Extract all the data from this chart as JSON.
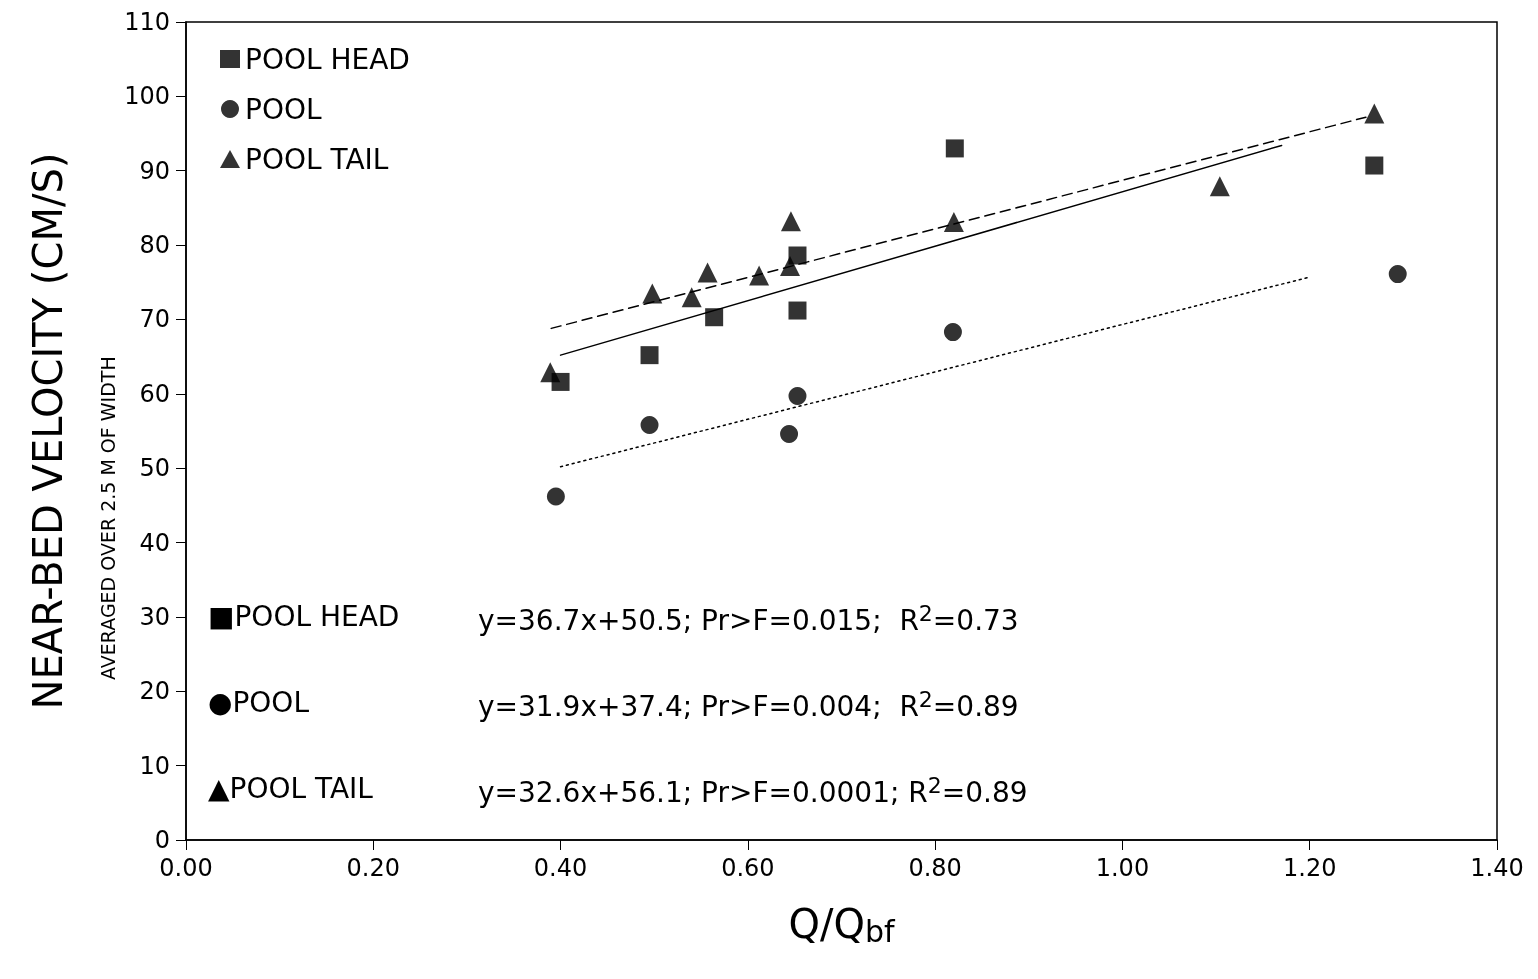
{
  "chart_data": {
    "type": "scatter",
    "xlabel": "Q/Q$_{bf}$",
    "ylabel": "NEAR-BED VELOCITY (CM/S)",
    "xlim": [
      0,
      1.4
    ],
    "xticks": [
      {
        "value": 0,
        "label": "0.00"
      },
      {
        "value": 0.2,
        "label": "0.20"
      },
      {
        "value": 0.4,
        "label": "0.40"
      },
      {
        "value": 0.6,
        "label": "0.60"
      },
      {
        "value": 0.8,
        "label": "0.80"
      },
      {
        "value": 1,
        "label": "1.00"
      },
      {
        "value": 1.2,
        "label": "1.20"
      },
      {
        "value": 1.4,
        "label": "1.40"
      }
    ],
    "ylim": [
      0,
      110
    ],
    "yticks": [
      0,
      10,
      20,
      30,
      40,
      50,
      60,
      70,
      80,
      90,
      100,
      110
    ],
    "grid": false,
    "legend": "top left",
    "series": [
      {
        "name": "POOL HEAD",
        "color": "#000000",
        "marker": "square",
        "x": [
          0.4,
          0.495,
          0.564,
          0.653,
          0.653,
          0.821,
          1.269
        ],
        "values": [
          61.6,
          65.2,
          70.3,
          71.2,
          78.6,
          93.0,
          90.7
        ]
      },
      {
        "name": "POOL",
        "color": "#000000",
        "marker": "circle",
        "x": [
          0.395,
          0.495,
          0.644,
          0.653,
          0.819,
          1.294
        ],
        "values": [
          46.2,
          55.8,
          54.6,
          59.7,
          68.3,
          76.1
        ]
      },
      {
        "name": "POOL TAIL",
        "color": "#000000",
        "marker": "triangle",
        "x": [
          0.389,
          0.498,
          0.54,
          0.557,
          0.612,
          0.645,
          0.646,
          0.82,
          1.104,
          1.269
        ],
        "values": [
          62.9,
          73.5,
          73.0,
          76.3,
          75.9,
          77.2,
          83.2,
          83.1,
          87.9,
          97.7
        ]
      },
      {
        "type": "line",
        "color": "#000000",
        "line_style": "solid",
        "marker": "none",
        "x": [
          0.4,
          1.17
        ],
        "values": [
          65.2,
          93.4
        ]
      },
      {
        "type": "line",
        "color": "#000000",
        "line_style": "dotted",
        "marker": "none",
        "x": [
          0.4,
          1.2
        ],
        "values": [
          50.2,
          75.7
        ]
      },
      {
        "type": "line",
        "color": "#000000",
        "line_style": "dashed",
        "marker": "none",
        "x": [
          0.39,
          1.26
        ],
        "values": [
          68.8,
          97.2
        ]
      }
    ],
    "annotations": [
      "AVERAGED OVER 2.5 M OF WIDTH",
      "■POOL HEAD",
      "y=36.7x+50.5; Pr>F=0.015;  R$^{2}$=0.73",
      "●POOL",
      "y=31.9x+37.4; Pr>F=0.004;  R$^{2}$=0.89",
      "▲POOL TAIL",
      "y=32.6x+56.1; Pr>F=0.0001; R$^{2}$=0.89"
    ]
  }
}
